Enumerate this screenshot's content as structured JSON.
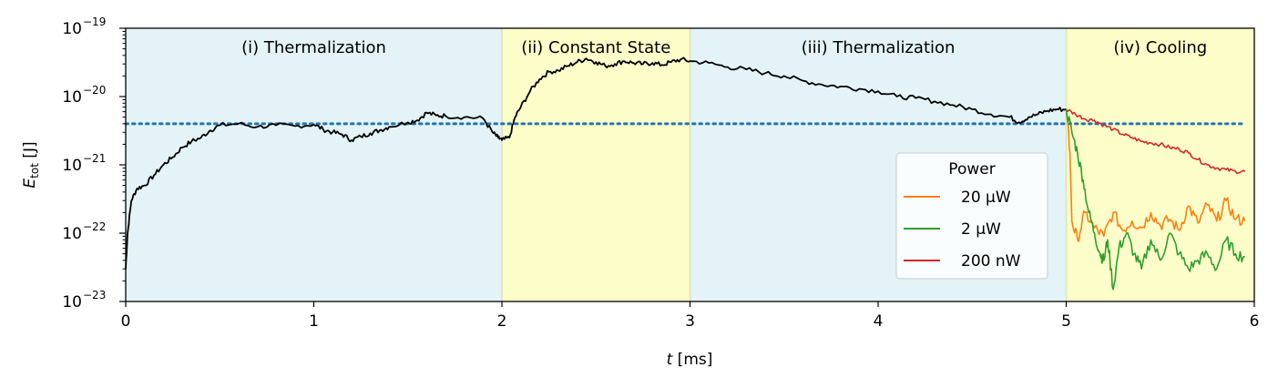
{
  "chart_data": {
    "type": "line",
    "xlabel_main": "t",
    "xlabel_unit": " [ms]",
    "ylabel_main": "E",
    "ylabel_sub": "tot",
    "ylabel_unit": " [J]",
    "xlim": [
      0,
      6
    ],
    "ylim_exp": [
      -23,
      -19
    ],
    "y_scale": "log",
    "x_ticks": [
      "0",
      "1",
      "2",
      "3",
      "4",
      "5",
      "6"
    ],
    "y_ticks": [
      {
        "exp": -23,
        "base": "10",
        "sup": "−23"
      },
      {
        "exp": -22,
        "base": "10",
        "sup": "−22"
      },
      {
        "exp": -21,
        "base": "10",
        "sup": "−21"
      },
      {
        "exp": -20,
        "base": "10",
        "sup": "−20"
      },
      {
        "exp": -19,
        "base": "10",
        "sup": "−19"
      }
    ],
    "threshold": {
      "y": 4e-21,
      "color": "#1f77b4",
      "style": "dotted"
    },
    "regions": [
      {
        "label": "(i) Thermalization",
        "x0": 0,
        "x1": 2,
        "color": "#e4f3f8"
      },
      {
        "label": "(ii) Constant State",
        "x0": 2,
        "x1": 3,
        "color": "#fdfdc9"
      },
      {
        "label": "(iii) Thermalization",
        "x0": 3,
        "x1": 5,
        "color": "#e4f3f8"
      },
      {
        "label": "(iv) Cooling",
        "x0": 5,
        "x1": 6,
        "color": "#fdfdc9"
      }
    ],
    "legend": {
      "title": "Power",
      "placement": "lower-right"
    },
    "series": [
      {
        "name": "",
        "color": "#000000",
        "points": [
          [
            0.0,
            3e-23
          ],
          [
            0.01,
            1e-22
          ],
          [
            0.03,
            3e-22
          ],
          [
            0.06,
            4.5e-22
          ],
          [
            0.1,
            5e-22
          ],
          [
            0.15,
            7e-22
          ],
          [
            0.2,
            1e-21
          ],
          [
            0.25,
            1.3e-21
          ],
          [
            0.3,
            1.8e-21
          ],
          [
            0.35,
            2.2e-21
          ],
          [
            0.4,
            2.5e-21
          ],
          [
            0.45,
            3.2e-21
          ],
          [
            0.5,
            3.8e-21
          ],
          [
            0.6,
            4e-21
          ],
          [
            0.7,
            3.6e-21
          ],
          [
            0.8,
            3.8e-21
          ],
          [
            0.9,
            3.7e-21
          ],
          [
            1.0,
            3.9e-21
          ],
          [
            1.05,
            3.3e-21
          ],
          [
            1.1,
            3e-21
          ],
          [
            1.15,
            2.8e-21
          ],
          [
            1.2,
            2.3e-21
          ],
          [
            1.25,
            2.6e-21
          ],
          [
            1.3,
            2.9e-21
          ],
          [
            1.35,
            3.2e-21
          ],
          [
            1.4,
            3.6e-21
          ],
          [
            1.5,
            4.2e-21
          ],
          [
            1.55,
            4.5e-21
          ],
          [
            1.6,
            5.8e-21
          ],
          [
            1.65,
            5.3e-21
          ],
          [
            1.7,
            5.2e-21
          ],
          [
            1.8,
            5e-21
          ],
          [
            1.9,
            4.8e-21
          ],
          [
            1.95,
            3e-21
          ],
          [
            1.98,
            2.5e-21
          ],
          [
            2.0,
            2.3e-21
          ],
          [
            2.04,
            2.5e-21
          ],
          [
            2.07,
            5e-21
          ],
          [
            2.1,
            7e-21
          ],
          [
            2.15,
            1.2e-20
          ],
          [
            2.2,
            1.8e-20
          ],
          [
            2.25,
            2.3e-20
          ],
          [
            2.3,
            2.4e-20
          ],
          [
            2.35,
            2.8e-20
          ],
          [
            2.4,
            3.2e-20
          ],
          [
            2.45,
            3.6e-20
          ],
          [
            2.5,
            3.2e-20
          ],
          [
            2.55,
            2.8e-20
          ],
          [
            2.6,
            3e-20
          ],
          [
            2.65,
            3.3e-20
          ],
          [
            2.7,
            3.1e-20
          ],
          [
            2.75,
            3e-20
          ],
          [
            2.8,
            3.1e-20
          ],
          [
            2.85,
            2.9e-20
          ],
          [
            2.9,
            3.2e-20
          ],
          [
            2.95,
            3.5e-20
          ],
          [
            3.0,
            3.3e-20
          ],
          [
            3.1,
            3.1e-20
          ],
          [
            3.2,
            2.7e-20
          ],
          [
            3.3,
            2.5e-20
          ],
          [
            3.4,
            2.2e-20
          ],
          [
            3.5,
            2e-20
          ],
          [
            3.6,
            1.7e-20
          ],
          [
            3.7,
            1.5e-20
          ],
          [
            3.8,
            1.4e-20
          ],
          [
            3.9,
            1.3e-20
          ],
          [
            4.0,
            1.2e-20
          ],
          [
            4.1,
            1e-20
          ],
          [
            4.2,
            9.5e-21
          ],
          [
            4.3,
            8.5e-21
          ],
          [
            4.4,
            7.5e-21
          ],
          [
            4.5,
            6.5e-21
          ],
          [
            4.6,
            5.5e-21
          ],
          [
            4.7,
            5e-21
          ],
          [
            4.75,
            4.2e-21
          ],
          [
            4.8,
            5e-21
          ],
          [
            4.85,
            5.5e-21
          ],
          [
            4.9,
            6.2e-21
          ],
          [
            4.95,
            6.5e-21
          ],
          [
            5.0,
            6.5e-21
          ]
        ]
      },
      {
        "name": "20 μW",
        "color": "#ff7f0e",
        "points": [
          [
            5.0,
            6.5e-21
          ],
          [
            5.02,
            1.5e-21
          ],
          [
            5.03,
            1.5e-22
          ],
          [
            5.06,
            8e-23
          ],
          [
            5.1,
            2e-22
          ],
          [
            5.15,
            1.2e-22
          ],
          [
            5.2,
            9e-23
          ],
          [
            5.25,
            2e-22
          ],
          [
            5.3,
            1.1e-22
          ],
          [
            5.35,
            1.5e-22
          ],
          [
            5.4,
            1.2e-22
          ],
          [
            5.45,
            2e-22
          ],
          [
            5.5,
            1.3e-22
          ],
          [
            5.55,
            1.6e-22
          ],
          [
            5.6,
            1.1e-22
          ],
          [
            5.65,
            2.5e-22
          ],
          [
            5.7,
            1.4e-22
          ],
          [
            5.75,
            2.6e-22
          ],
          [
            5.8,
            1.5e-22
          ],
          [
            5.85,
            3e-22
          ],
          [
            5.9,
            1.6e-22
          ],
          [
            5.95,
            1.5e-22
          ]
        ]
      },
      {
        "name": "2 μW",
        "color": "#2ca02c",
        "points": [
          [
            5.0,
            6.5e-21
          ],
          [
            5.03,
            3e-21
          ],
          [
            5.06,
            1.5e-21
          ],
          [
            5.09,
            6e-22
          ],
          [
            5.12,
            2e-22
          ],
          [
            5.15,
            1e-22
          ],
          [
            5.18,
            5e-23
          ],
          [
            5.2,
            4e-23
          ],
          [
            5.22,
            8e-23
          ],
          [
            5.25,
            1.5e-23
          ],
          [
            5.28,
            6e-23
          ],
          [
            5.32,
            1e-22
          ],
          [
            5.36,
            5e-23
          ],
          [
            5.4,
            3e-23
          ],
          [
            5.45,
            8e-23
          ],
          [
            5.5,
            4e-23
          ],
          [
            5.55,
            1e-22
          ],
          [
            5.6,
            5e-23
          ],
          [
            5.65,
            3e-23
          ],
          [
            5.7,
            4e-23
          ],
          [
            5.75,
            5e-23
          ],
          [
            5.8,
            3e-23
          ],
          [
            5.85,
            8e-23
          ],
          [
            5.9,
            5e-23
          ],
          [
            5.95,
            4.5e-23
          ]
        ]
      },
      {
        "name": "200 nW",
        "color": "#d62728",
        "points": [
          [
            5.0,
            6.5e-21
          ],
          [
            5.05,
            5.5e-21
          ],
          [
            5.1,
            4.7e-21
          ],
          [
            5.15,
            4.5e-21
          ],
          [
            5.2,
            3.8e-21
          ],
          [
            5.25,
            3.3e-21
          ],
          [
            5.3,
            2.8e-21
          ],
          [
            5.35,
            2.5e-21
          ],
          [
            5.4,
            2.2e-21
          ],
          [
            5.45,
            2.1e-21
          ],
          [
            5.5,
            2e-21
          ],
          [
            5.55,
            1.8e-21
          ],
          [
            5.6,
            1.7e-21
          ],
          [
            5.65,
            1.5e-21
          ],
          [
            5.7,
            1.2e-21
          ],
          [
            5.75,
            1e-21
          ],
          [
            5.8,
            9e-22
          ],
          [
            5.85,
            8.5e-22
          ],
          [
            5.9,
            8e-22
          ],
          [
            5.95,
            8e-22
          ]
        ]
      }
    ]
  }
}
